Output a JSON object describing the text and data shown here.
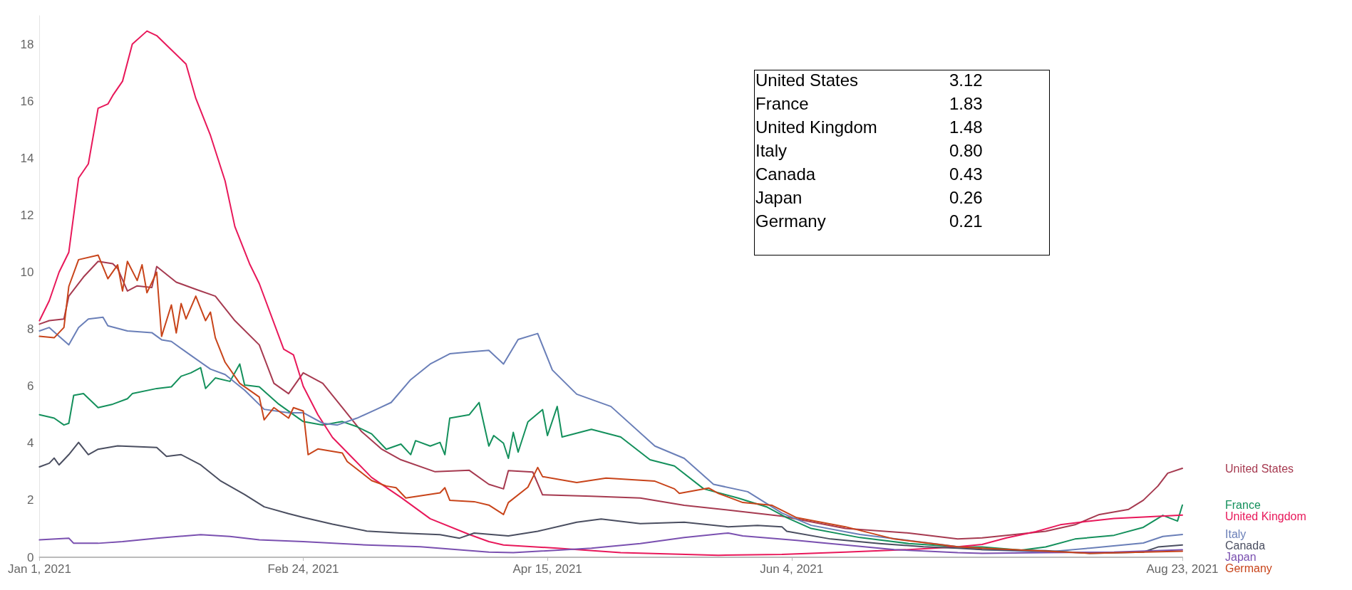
{
  "chart_data": {
    "type": "line",
    "xlim": [
      "2021-01-01",
      "2021-08-23"
    ],
    "xticks": [
      {
        "value": "2021-01-01",
        "label": "Jan 1, 2021"
      },
      {
        "value": "2021-02-24",
        "label": "Feb 24, 2021"
      },
      {
        "value": "2021-04-15",
        "label": "Apr 15, 2021"
      },
      {
        "value": "2021-06-04",
        "label": "Jun 4, 2021"
      },
      {
        "value": "2021-08-23",
        "label": "Aug 23, 2021"
      }
    ],
    "ylim": [
      0,
      19
    ],
    "yticks": [
      0,
      2,
      4,
      6,
      8,
      10,
      12,
      14,
      16,
      18
    ],
    "marker": "none",
    "line_style": "solid",
    "annotations": [
      "United States 3.12",
      "France 1.83",
      "United Kingdom 1.48",
      "Italy 0.80",
      "Canada 0.43",
      "Japan 0.26",
      "Germany 0.21"
    ],
    "series": [
      {
        "name": "United States",
        "color": "#a63a50",
        "x": [
          "2021-01-01",
          "2021-01-03",
          "2021-01-06",
          "2021-01-07",
          "2021-01-10",
          "2021-01-13",
          "2021-01-16",
          "2021-01-17",
          "2021-01-19",
          "2021-01-21",
          "2021-01-24",
          "2021-01-25",
          "2021-01-29",
          "2021-02-02",
          "2021-02-06",
          "2021-02-10",
          "2021-02-15",
          "2021-02-18",
          "2021-02-21",
          "2021-02-24",
          "2021-02-28",
          "2021-03-04",
          "2021-03-08",
          "2021-03-12",
          "2021-03-16",
          "2021-03-23",
          "2021-03-30",
          "2021-04-03",
          "2021-04-06",
          "2021-04-07",
          "2021-04-12",
          "2021-04-14",
          "2021-04-24",
          "2021-05-04",
          "2021-05-13",
          "2021-05-25",
          "2021-06-02",
          "2021-06-15",
          "2021-06-28",
          "2021-07-08",
          "2021-07-13",
          "2021-07-18",
          "2021-07-26",
          "2021-08-01",
          "2021-08-06",
          "2021-08-12",
          "2021-08-15",
          "2021-08-18",
          "2021-08-20",
          "2021-08-23"
        ],
        "values": [
          8.18,
          8.3,
          8.36,
          9.16,
          9.83,
          10.38,
          10.3,
          10.13,
          9.34,
          9.52,
          9.46,
          10.2,
          9.65,
          9.4,
          9.16,
          8.3,
          7.45,
          6.1,
          5.74,
          6.47,
          6.1,
          5.25,
          4.4,
          3.8,
          3.42,
          3.0,
          3.05,
          2.56,
          2.4,
          3.04,
          2.99,
          2.19,
          2.14,
          2.08,
          1.82,
          1.6,
          1.44,
          1.01,
          0.85,
          0.64,
          0.68,
          0.77,
          0.91,
          1.14,
          1.5,
          1.68,
          2.0,
          2.5,
          2.95,
          3.12
        ]
      },
      {
        "name": "France",
        "color": "#14905c",
        "x": [
          "2021-01-01",
          "2021-01-04",
          "2021-01-06",
          "2021-01-07",
          "2021-01-08",
          "2021-01-10",
          "2021-01-13",
          "2021-01-16",
          "2021-01-19",
          "2021-01-20",
          "2021-01-25",
          "2021-01-28",
          "2021-01-30",
          "2021-02-01",
          "2021-02-03",
          "2021-02-04",
          "2021-02-06",
          "2021-02-09",
          "2021-02-11",
          "2021-02-12",
          "2021-02-15",
          "2021-02-19",
          "2021-02-24",
          "2021-02-28",
          "2021-03-04",
          "2021-03-07",
          "2021-03-10",
          "2021-03-13",
          "2021-03-16",
          "2021-03-18",
          "2021-03-19",
          "2021-03-22",
          "2021-03-24",
          "2021-03-25",
          "2021-03-26",
          "2021-03-30",
          "2021-04-01",
          "2021-04-03",
          "2021-04-04",
          "2021-04-06",
          "2021-04-07",
          "2021-04-08",
          "2021-04-09",
          "2021-04-11",
          "2021-04-14",
          "2021-04-15",
          "2021-04-17",
          "2021-04-18",
          "2021-04-24",
          "2021-04-30",
          "2021-05-06",
          "2021-05-11",
          "2021-05-17",
          "2021-05-24",
          "2021-05-30",
          "2021-06-03",
          "2021-06-08",
          "2021-06-18",
          "2021-06-28",
          "2021-07-08",
          "2021-07-13",
          "2021-07-21",
          "2021-07-26",
          "2021-08-01",
          "2021-08-09",
          "2021-08-15",
          "2021-08-19",
          "2021-08-22",
          "2021-08-23"
        ],
        "values": [
          5.0,
          4.88,
          4.64,
          4.7,
          5.68,
          5.74,
          5.25,
          5.37,
          5.56,
          5.74,
          5.92,
          5.98,
          6.35,
          6.47,
          6.65,
          5.92,
          6.29,
          6.17,
          6.78,
          6.04,
          5.98,
          5.37,
          4.76,
          4.64,
          4.76,
          4.58,
          4.33,
          3.79,
          3.97,
          3.6,
          4.09,
          3.9,
          4.03,
          3.6,
          4.88,
          5.0,
          5.43,
          3.9,
          4.27,
          4.0,
          3.47,
          4.38,
          3.69,
          4.75,
          5.18,
          4.27,
          5.29,
          4.22,
          4.49,
          4.22,
          3.42,
          3.2,
          2.4,
          2.08,
          1.76,
          1.39,
          1.01,
          0.69,
          0.48,
          0.37,
          0.36,
          0.25,
          0.36,
          0.64,
          0.77,
          1.05,
          1.47,
          1.27,
          1.83
        ]
      },
      {
        "name": "United Kingdom",
        "color": "#e8185a",
        "x": [
          "2021-01-01",
          "2021-01-03",
          "2021-01-05",
          "2021-01-07",
          "2021-01-09",
          "2021-01-11",
          "2021-01-13",
          "2021-01-15",
          "2021-01-16",
          "2021-01-18",
          "2021-01-20",
          "2021-01-23",
          "2021-01-25",
          "2021-01-28",
          "2021-01-31",
          "2021-02-02",
          "2021-02-05",
          "2021-02-08",
          "2021-02-10",
          "2021-02-13",
          "2021-02-15",
          "2021-02-20",
          "2021-02-22",
          "2021-02-24",
          "2021-02-27",
          "2021-03-02",
          "2021-03-06",
          "2021-03-10",
          "2021-03-16",
          "2021-03-22",
          "2021-03-30",
          "2021-04-03",
          "2021-04-06",
          "2021-04-17",
          "2021-04-30",
          "2021-05-20",
          "2021-06-02",
          "2021-06-15",
          "2021-06-28",
          "2021-07-08",
          "2021-07-13",
          "2021-07-18",
          "2021-07-24",
          "2021-07-29",
          "2021-08-04",
          "2021-08-09",
          "2021-08-15",
          "2021-08-23"
        ],
        "values": [
          8.3,
          9.0,
          10.0,
          10.7,
          13.3,
          13.8,
          15.75,
          15.9,
          16.2,
          16.7,
          18.0,
          18.46,
          18.3,
          17.8,
          17.3,
          16.1,
          14.8,
          13.2,
          11.6,
          10.3,
          9.6,
          7.3,
          7.1,
          6.0,
          5.0,
          4.2,
          3.5,
          2.8,
          2.1,
          1.35,
          0.8,
          0.55,
          0.43,
          0.32,
          0.16,
          0.07,
          0.1,
          0.18,
          0.27,
          0.37,
          0.45,
          0.68,
          0.9,
          1.14,
          1.27,
          1.36,
          1.41,
          1.48
        ]
      },
      {
        "name": "Italy",
        "color": "#6a7fb8",
        "x": [
          "2021-01-01",
          "2021-01-03",
          "2021-01-05",
          "2021-01-07",
          "2021-01-09",
          "2021-01-11",
          "2021-01-14",
          "2021-01-15",
          "2021-01-19",
          "2021-01-24",
          "2021-01-26",
          "2021-01-28",
          "2021-02-01",
          "2021-02-05",
          "2021-02-08",
          "2021-02-12",
          "2021-02-16",
          "2021-02-21",
          "2021-02-24",
          "2021-02-28",
          "2021-03-03",
          "2021-03-07",
          "2021-03-11",
          "2021-03-14",
          "2021-03-18",
          "2021-03-22",
          "2021-03-26",
          "2021-03-30",
          "2021-04-03",
          "2021-04-06",
          "2021-04-09",
          "2021-04-13",
          "2021-04-16",
          "2021-04-21",
          "2021-04-28",
          "2021-05-07",
          "2021-05-13",
          "2021-05-19",
          "2021-05-26",
          "2021-06-02",
          "2021-06-08",
          "2021-06-18",
          "2021-06-28",
          "2021-07-08",
          "2021-07-13",
          "2021-07-26",
          "2021-08-04",
          "2021-08-15",
          "2021-08-19",
          "2021-08-23"
        ],
        "values": [
          7.94,
          8.06,
          7.75,
          7.45,
          8.06,
          8.36,
          8.42,
          8.12,
          7.94,
          7.88,
          7.63,
          7.57,
          7.08,
          6.6,
          6.41,
          5.86,
          5.19,
          5.07,
          5.07,
          4.7,
          4.64,
          4.88,
          5.19,
          5.43,
          6.23,
          6.78,
          7.14,
          7.2,
          7.26,
          6.78,
          7.64,
          7.85,
          6.57,
          5.72,
          5.29,
          3.9,
          3.47,
          2.56,
          2.3,
          1.55,
          1.12,
          0.8,
          0.59,
          0.37,
          0.27,
          0.18,
          0.32,
          0.5,
          0.73,
          0.8
        ]
      },
      {
        "name": "Canada",
        "color": "#4a4e60",
        "x": [
          "2021-01-01",
          "2021-01-03",
          "2021-01-04",
          "2021-01-05",
          "2021-01-07",
          "2021-01-09",
          "2021-01-11",
          "2021-01-13",
          "2021-01-17",
          "2021-01-25",
          "2021-01-27",
          "2021-01-30",
          "2021-02-03",
          "2021-02-07",
          "2021-02-12",
          "2021-02-16",
          "2021-02-21",
          "2021-02-24",
          "2021-03-02",
          "2021-03-09",
          "2021-03-16",
          "2021-03-24",
          "2021-03-28",
          "2021-03-31",
          "2021-04-07",
          "2021-04-13",
          "2021-04-21",
          "2021-04-26",
          "2021-05-04",
          "2021-05-13",
          "2021-05-22",
          "2021-05-28",
          "2021-06-02",
          "2021-06-03",
          "2021-06-12",
          "2021-06-22",
          "2021-07-01",
          "2021-07-08",
          "2021-07-13",
          "2021-07-26",
          "2021-08-04",
          "2021-08-15",
          "2021-08-18",
          "2021-08-23"
        ],
        "values": [
          3.17,
          3.3,
          3.48,
          3.24,
          3.6,
          4.03,
          3.6,
          3.79,
          3.91,
          3.85,
          3.54,
          3.6,
          3.24,
          2.69,
          2.2,
          1.77,
          1.53,
          1.4,
          1.16,
          0.92,
          0.85,
          0.79,
          0.67,
          0.85,
          0.75,
          0.91,
          1.23,
          1.34,
          1.18,
          1.23,
          1.07,
          1.12,
          1.07,
          0.91,
          0.64,
          0.48,
          0.37,
          0.32,
          0.27,
          0.23,
          0.14,
          0.18,
          0.36,
          0.43
        ]
      },
      {
        "name": "Japan",
        "color": "#7a50b0",
        "x": [
          "2021-01-01",
          "2021-01-07",
          "2021-01-08",
          "2021-01-13",
          "2021-01-18",
          "2021-01-25",
          "2021-02-03",
          "2021-02-09",
          "2021-02-15",
          "2021-02-24",
          "2021-03-09",
          "2021-03-20",
          "2021-04-03",
          "2021-04-08",
          "2021-04-24",
          "2021-05-04",
          "2021-05-13",
          "2021-05-22",
          "2021-05-25",
          "2021-06-05",
          "2021-06-15",
          "2021-06-25",
          "2021-07-08",
          "2021-07-13",
          "2021-07-26",
          "2021-08-09",
          "2021-08-23"
        ],
        "values": [
          0.61,
          0.67,
          0.49,
          0.49,
          0.55,
          0.67,
          0.79,
          0.73,
          0.61,
          0.55,
          0.43,
          0.37,
          0.18,
          0.16,
          0.32,
          0.48,
          0.69,
          0.85,
          0.75,
          0.59,
          0.43,
          0.27,
          0.16,
          0.14,
          0.16,
          0.18,
          0.26
        ]
      },
      {
        "name": "Germany",
        "color": "#c8441a",
        "x": [
          "2021-01-01",
          "2021-01-04",
          "2021-01-06",
          "2021-01-07",
          "2021-01-09",
          "2021-01-13",
          "2021-01-15",
          "2021-01-17",
          "2021-01-18",
          "2021-01-19",
          "2021-01-21",
          "2021-01-22",
          "2021-01-23",
          "2021-01-25",
          "2021-01-26",
          "2021-01-28",
          "2021-01-29",
          "2021-01-30",
          "2021-01-31",
          "2021-02-02",
          "2021-02-04",
          "2021-02-05",
          "2021-02-06",
          "2021-02-08",
          "2021-02-11",
          "2021-02-15",
          "2021-02-16",
          "2021-02-18",
          "2021-02-21",
          "2021-02-22",
          "2021-02-24",
          "2021-02-25",
          "2021-02-27",
          "2021-03-04",
          "2021-03-05",
          "2021-03-10",
          "2021-03-13",
          "2021-03-15",
          "2021-03-17",
          "2021-03-24",
          "2021-03-25",
          "2021-03-26",
          "2021-03-31",
          "2021-04-03",
          "2021-04-06",
          "2021-04-07",
          "2021-04-11",
          "2021-04-13",
          "2021-04-14",
          "2021-04-21",
          "2021-04-27",
          "2021-05-07",
          "2021-05-11",
          "2021-05-12",
          "2021-05-18",
          "2021-05-20",
          "2021-05-25",
          "2021-05-31",
          "2021-06-05",
          "2021-06-15",
          "2021-06-25",
          "2021-07-08",
          "2021-07-13",
          "2021-07-24",
          "2021-08-04",
          "2021-08-15",
          "2021-08-23"
        ],
        "values": [
          7.75,
          7.7,
          8.06,
          9.5,
          10.44,
          10.6,
          9.77,
          10.26,
          9.34,
          10.38,
          9.71,
          10.26,
          9.28,
          10.0,
          7.75,
          8.85,
          7.87,
          8.9,
          8.36,
          9.16,
          8.3,
          8.6,
          7.7,
          6.84,
          6.1,
          5.62,
          4.82,
          5.25,
          4.88,
          5.25,
          5.13,
          3.6,
          3.8,
          3.66,
          3.36,
          2.69,
          2.5,
          2.44,
          2.08,
          2.26,
          2.44,
          2.0,
          1.95,
          1.83,
          1.5,
          1.92,
          2.46,
          3.15,
          2.83,
          2.62,
          2.78,
          2.67,
          2.4,
          2.24,
          2.43,
          2.24,
          1.92,
          1.82,
          1.39,
          1.07,
          0.64,
          0.37,
          0.32,
          0.23,
          0.14,
          0.18,
          0.21
        ]
      }
    ]
  }
}
